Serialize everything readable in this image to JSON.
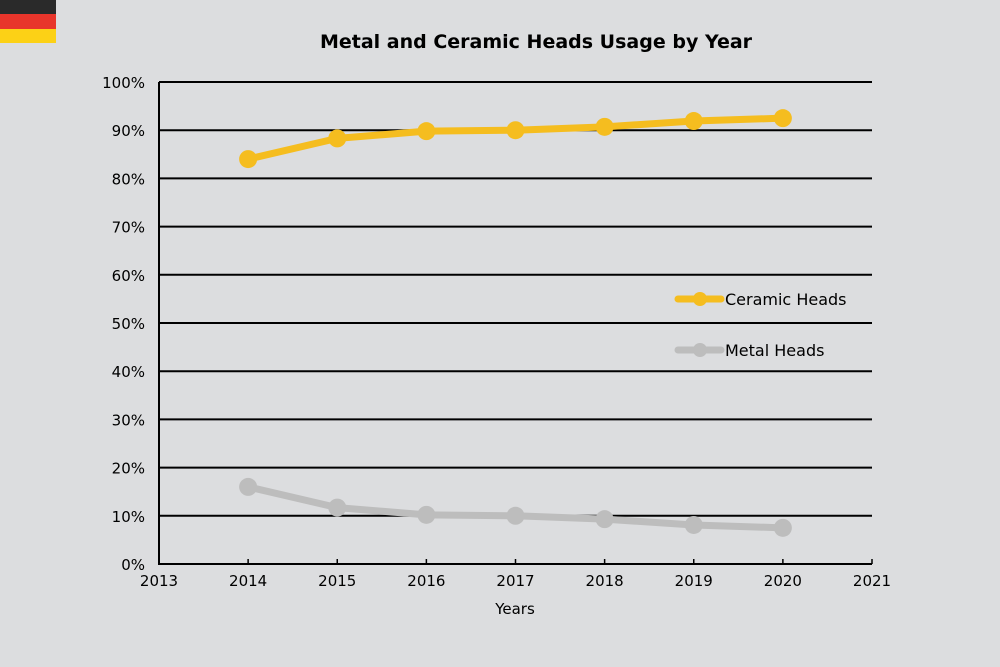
{
  "flag": {
    "colors": [
      "#2a2a2a",
      "#e8352b",
      "#fcd116"
    ]
  },
  "chart_data": {
    "type": "line",
    "title": "Metal and Ceramic Heads Usage by Year",
    "xlabel": "Years",
    "ylabel": "",
    "xlim": [
      2013,
      2021
    ],
    "ylim": [
      0,
      100
    ],
    "x_ticks": [
      "2013",
      "2014",
      "2015",
      "2016",
      "2017",
      "2018",
      "2019",
      "2020",
      "2021"
    ],
    "y_ticks": [
      "0%",
      "10%",
      "20%",
      "30%",
      "40%",
      "50%",
      "60%",
      "70%",
      "80%",
      "90%",
      "100%"
    ],
    "grid": "horizontal",
    "legend_position": "right",
    "x": [
      2014,
      2015,
      2016,
      2017,
      2018,
      2019,
      2020
    ],
    "series": [
      {
        "name": "Ceramic Heads",
        "color": "#f5bd1f",
        "values": [
          84.0,
          88.3,
          89.8,
          90.0,
          90.7,
          91.9,
          92.5
        ]
      },
      {
        "name": "Metal Heads",
        "color": "#bdbdbd",
        "values": [
          16.0,
          11.7,
          10.2,
          10.0,
          9.3,
          8.1,
          7.5
        ]
      }
    ]
  }
}
